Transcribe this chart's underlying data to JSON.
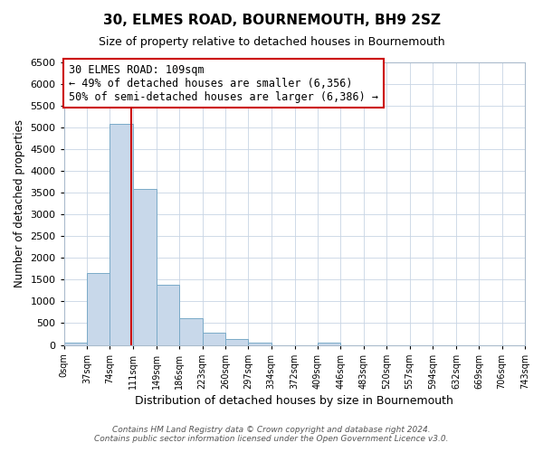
{
  "title": "30, ELMES ROAD, BOURNEMOUTH, BH9 2SZ",
  "subtitle": "Size of property relative to detached houses in Bournemouth",
  "xlabel": "Distribution of detached houses by size in Bournemouth",
  "ylabel": "Number of detached properties",
  "bin_edges": [
    0,
    37,
    74,
    111,
    149,
    186,
    223,
    260,
    297,
    334,
    372,
    409,
    446,
    483,
    520,
    557,
    594,
    632,
    669,
    706,
    743
  ],
  "bin_counts": [
    50,
    1650,
    5080,
    3580,
    1390,
    610,
    290,
    140,
    50,
    0,
    0,
    50,
    0,
    0,
    0,
    0,
    0,
    0,
    0,
    0
  ],
  "bar_facecolor": "#c8d8ea",
  "bar_edgecolor": "#7aaac8",
  "vline_x": 109,
  "vline_color": "#cc0000",
  "annotation_line1": "30 ELMES ROAD: 109sqm",
  "annotation_line2": "← 49% of detached houses are smaller (6,356)",
  "annotation_line3": "50% of semi-detached houses are larger (6,386) →",
  "annotation_fontsize": 8.5,
  "title_fontsize": 11,
  "subtitle_fontsize": 9,
  "xlabel_fontsize": 9,
  "ylabel_fontsize": 8.5,
  "tick_labels": [
    "0sqm",
    "37sqm",
    "74sqm",
    "111sqm",
    "149sqm",
    "186sqm",
    "223sqm",
    "260sqm",
    "297sqm",
    "334sqm",
    "372sqm",
    "409sqm",
    "446sqm",
    "483sqm",
    "520sqm",
    "557sqm",
    "594sqm",
    "632sqm",
    "669sqm",
    "706sqm",
    "743sqm"
  ],
  "ylim": [
    0,
    6500
  ],
  "yticks": [
    0,
    500,
    1000,
    1500,
    2000,
    2500,
    3000,
    3500,
    4000,
    4500,
    5000,
    5500,
    6000,
    6500
  ],
  "footer_line1": "Contains HM Land Registry data © Crown copyright and database right 2024.",
  "footer_line2": "Contains public sector information licensed under the Open Government Licence v3.0.",
  "background_color": "#ffffff",
  "plot_background_color": "#ffffff",
  "grid_color": "#c8d4e4"
}
